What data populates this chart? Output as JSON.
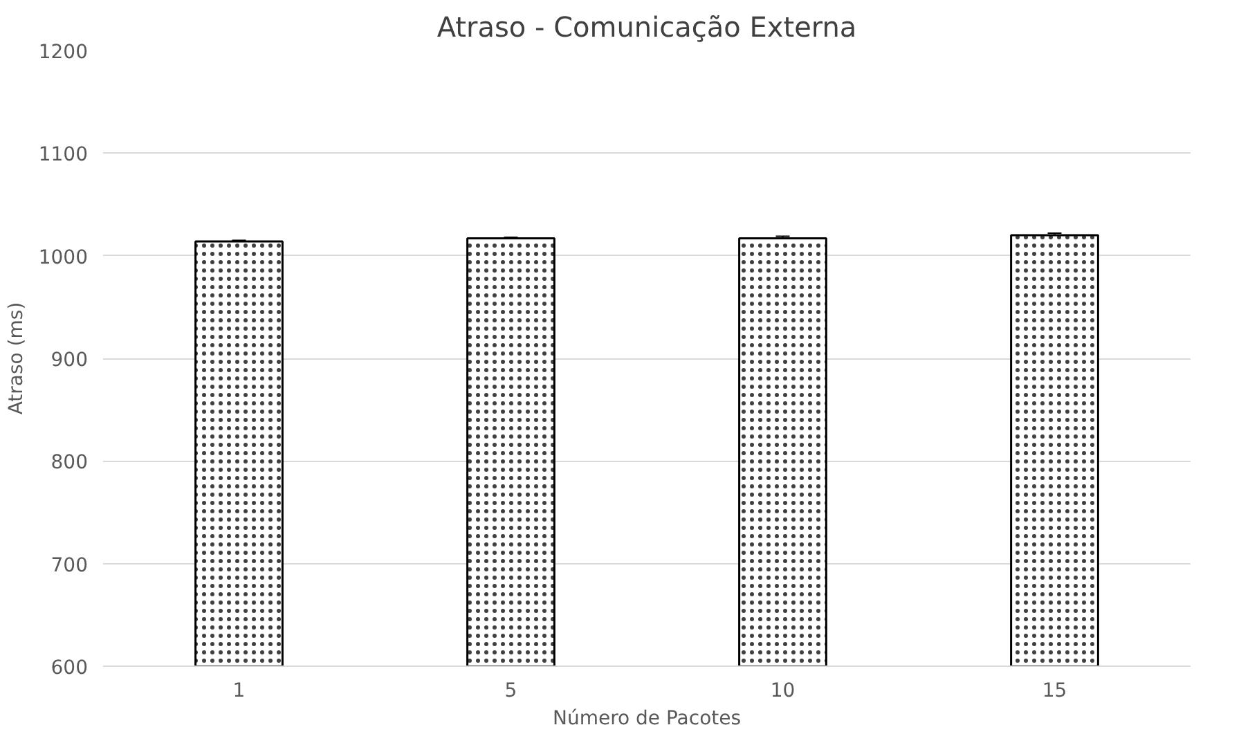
{
  "chart_data": {
    "type": "bar",
    "title": "Atraso - Comunicação Externa",
    "xlabel": "Número de Pacotes",
    "ylabel": "Atraso (ms)",
    "categories": [
      "1",
      "5",
      "10",
      "15"
    ],
    "values": [
      1014,
      1017,
      1017,
      1020
    ],
    "errors": [
      1,
      1,
      2,
      2
    ],
    "color": "#ffffff",
    "ylim": [
      600,
      1200
    ],
    "yticks": [
      600,
      700,
      800,
      900,
      1000,
      1100,
      1200
    ],
    "grid": "y"
  }
}
